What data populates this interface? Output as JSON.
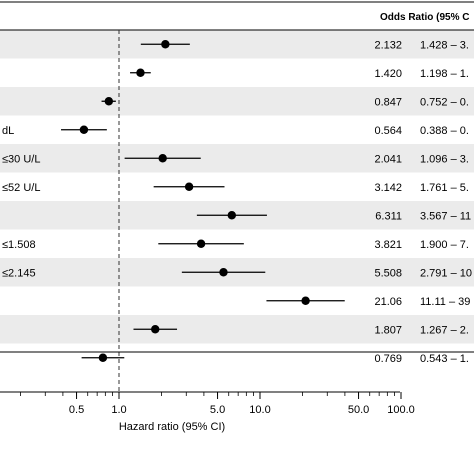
{
  "header": {
    "or_column": "Odds Ratio (95% C"
  },
  "axis": {
    "xlabel": "Hazard ratio (95% CI)"
  },
  "chart_data": {
    "type": "forest",
    "xscale": "log",
    "xlim": [
      0.1,
      100
    ],
    "reference_line": 1.0,
    "xlabel": "Hazard ratio (95% CI)",
    "tick_labels": [
      {
        "value": 0.5,
        "label": "0.5"
      },
      {
        "value": 1.0,
        "label": "1.0"
      },
      {
        "value": 5.0,
        "label": "5.0"
      },
      {
        "value": 10.0,
        "label": "10.0"
      },
      {
        "value": 50.0,
        "label": "50.0"
      },
      {
        "value": 100.0,
        "label": "100.0"
      }
    ],
    "rows": [
      {
        "label": "",
        "or": 2.132,
        "lo": 1.428,
        "hi": 3.18,
        "or_text": "2.132",
        "ci_text": "1.428 – 3.",
        "shaded": true
      },
      {
        "label": "",
        "or": 1.42,
        "lo": 1.198,
        "hi": 1.68,
        "or_text": "1.420",
        "ci_text": "1.198 – 1.",
        "shaded": false
      },
      {
        "label": "",
        "or": 0.847,
        "lo": 0.752,
        "hi": 0.95,
        "or_text": "0.847",
        "ci_text": "0.752 – 0.",
        "shaded": true
      },
      {
        "label": "dL",
        "or": 0.564,
        "lo": 0.388,
        "hi": 0.82,
        "or_text": "0.564",
        "ci_text": "0.388 – 0.",
        "shaded": false
      },
      {
        "label": "≤30 U/L",
        "or": 2.041,
        "lo": 1.096,
        "hi": 3.8,
        "or_text": "2.041",
        "ci_text": "1.096 – 3.",
        "shaded": true
      },
      {
        "label": "≤52 U/L",
        "or": 3.142,
        "lo": 1.761,
        "hi": 5.6,
        "or_text": "3.142",
        "ci_text": "1.761 – 5.",
        "shaded": false
      },
      {
        "label": "",
        "or": 6.311,
        "lo": 3.567,
        "hi": 11.2,
        "or_text": "6.311",
        "ci_text": "3.567 – 11",
        "shaded": true
      },
      {
        "label": "≤1.508",
        "or": 3.821,
        "lo": 1.9,
        "hi": 7.68,
        "or_text": "3.821",
        "ci_text": "1.900 – 7.",
        "shaded": false
      },
      {
        "label": "≤2.145",
        "or": 5.508,
        "lo": 2.791,
        "hi": 10.9,
        "or_text": "5.508",
        "ci_text": "2.791 – 10",
        "shaded": true
      },
      {
        "label": "",
        "or": 21.06,
        "lo": 11.11,
        "hi": 39.9,
        "or_text": "21.06",
        "ci_text": "11.11 – 39",
        "shaded": false
      },
      {
        "label": "",
        "or": 1.807,
        "lo": 1.267,
        "hi": 2.58,
        "or_text": "1.807",
        "ci_text": "1.267 – 2.",
        "shaded": true
      },
      {
        "label": "",
        "or": 0.769,
        "lo": 0.543,
        "hi": 1.09,
        "or_text": "0.769",
        "ci_text": "0.543 – 1.",
        "shaded": false
      }
    ],
    "colors": {
      "shade": "#ebebeb",
      "point": "#000000",
      "line": "#000000"
    }
  }
}
